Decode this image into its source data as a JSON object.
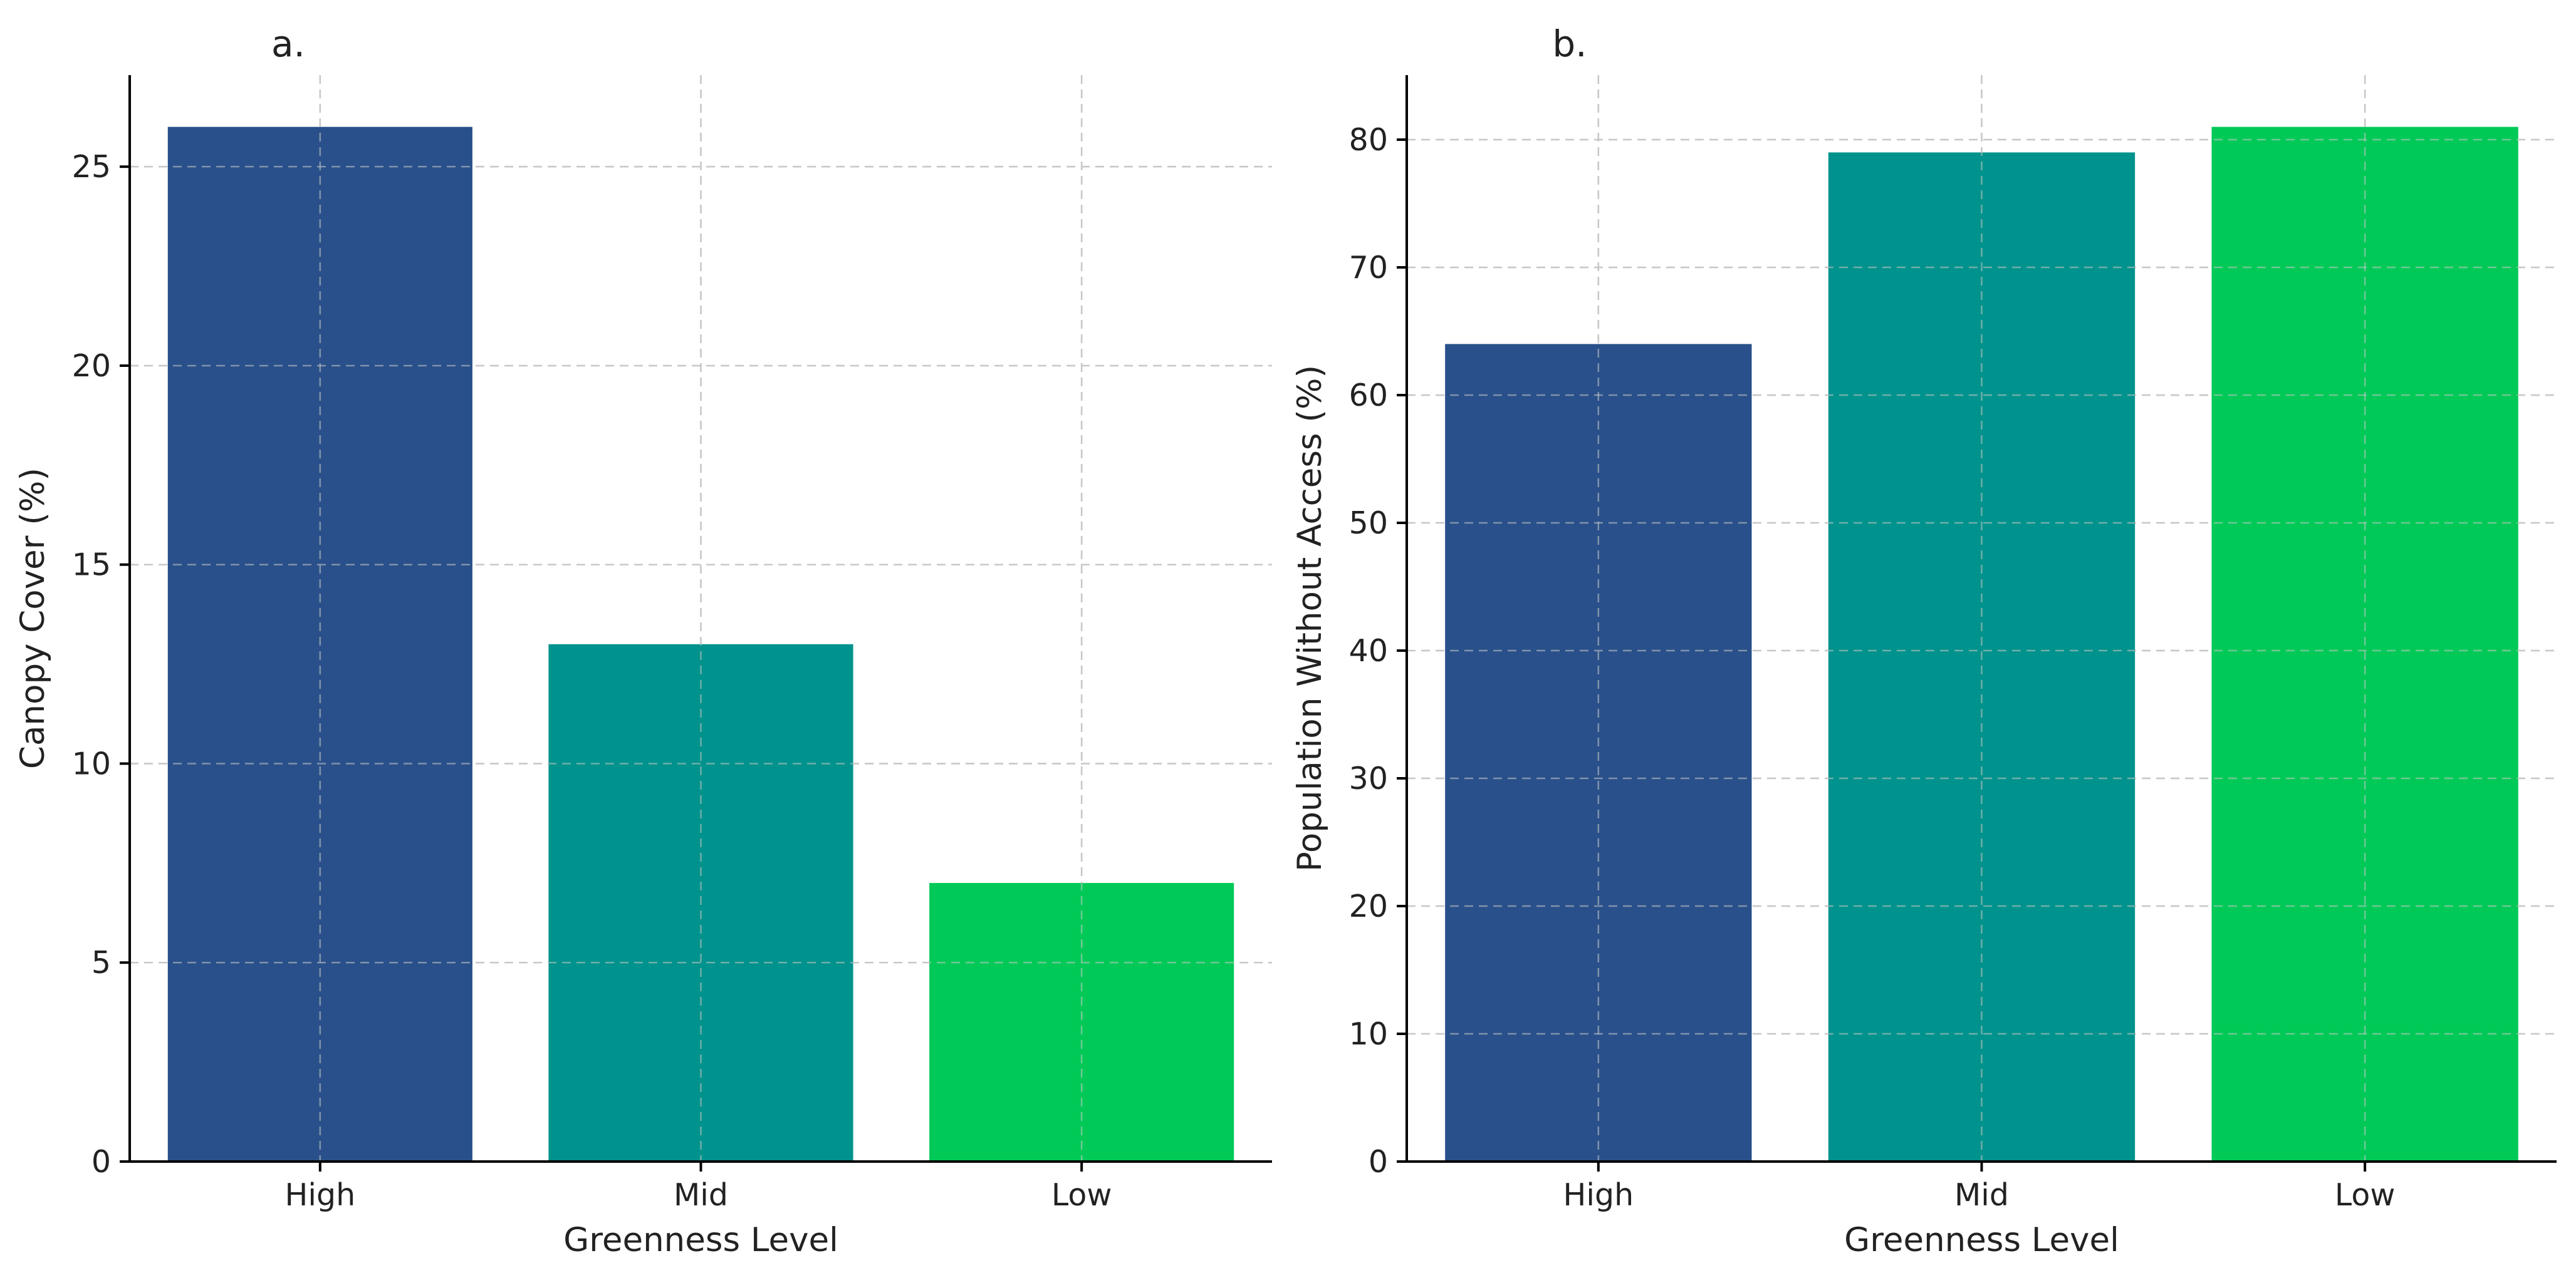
{
  "chart_data": [
    {
      "type": "bar",
      "title": "a.",
      "xlabel": "Greenness Level",
      "ylabel": "Canopy Cover (%)",
      "categories": [
        "High",
        "Mid",
        "Low"
      ],
      "values": [
        26,
        13,
        7
      ],
      "colors": [
        "#29508a",
        "#00928c",
        "#00c957"
      ],
      "ylim": [
        0,
        27.3
      ],
      "yticks": [
        0,
        5,
        10,
        15,
        20,
        25
      ],
      "grid": true,
      "legend": "none"
    },
    {
      "type": "bar",
      "title": "b.",
      "xlabel": "Greenness Level",
      "ylabel": "Population Without Access (%)",
      "categories": [
        "High",
        "Mid",
        "Low"
      ],
      "values": [
        64,
        79,
        81
      ],
      "colors": [
        "#29508a",
        "#00928c",
        "#00c957"
      ],
      "ylim": [
        0,
        85.05
      ],
      "yticks": [
        0,
        10,
        20,
        30,
        40,
        50,
        60,
        70,
        80
      ],
      "grid": true,
      "legend": "none"
    }
  ]
}
